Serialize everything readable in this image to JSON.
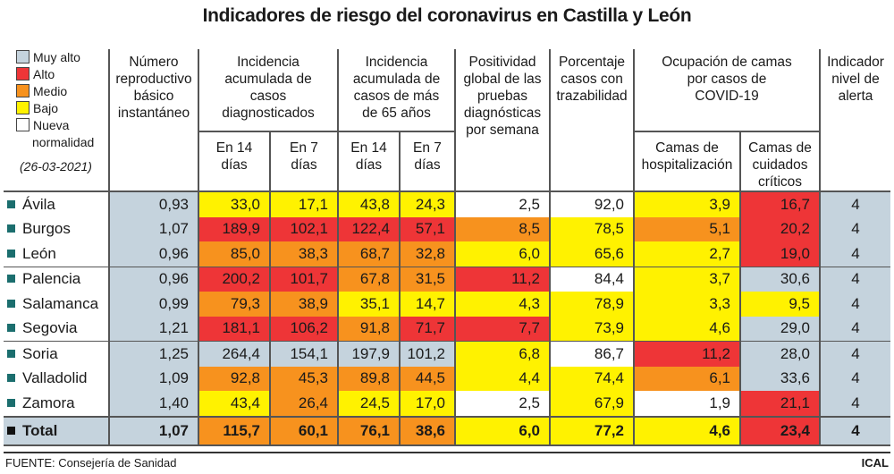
{
  "title": "Indicadores de riesgo del coronavirus en Castilla y León",
  "legend": {
    "items": [
      {
        "label": "Muy alto",
        "color": "#c5d3dd"
      },
      {
        "label": "Alto",
        "color": "#ee3537"
      },
      {
        "label": "Medio",
        "color": "#f7921e"
      },
      {
        "label": "Bajo",
        "color": "#fff200"
      },
      {
        "label": "Nueva",
        "color": "#ffffff"
      }
    ],
    "label_cont": "normalidad",
    "date": "(26-03-2021)"
  },
  "headers": {
    "r": "Número reproductivo básico instantáneo",
    "ia": "Incidencia acumulada de casos diagnosticados",
    "ia65": "Incidencia acumulada de casos de más de 65 años",
    "pos": "Positividad global de las pruebas diagnósticas por semana",
    "traz": "Porcentaje casos con trazabilidad",
    "ocup": "Ocupación de camas por casos de COVID-19",
    "ind": "Indicador nivel de alerta",
    "en14": "En 14 días",
    "en7": "En 7 días",
    "hosp": "Camas de hospitalización",
    "uci": "Camas de cuidados críticos"
  },
  "colors": {
    "G": "#c5d3dd",
    "R": "#ee3537",
    "O": "#f7921e",
    "Y": "#fff200",
    "W": "#ffffff",
    "bullet": "#1b6e6e"
  },
  "rows": [
    {
      "name": "Ávila",
      "values": [
        "0,93",
        "33,0",
        "17,1",
        "43,8",
        "24,3",
        "2,5",
        "92,0",
        "3,9",
        "16,7",
        "4"
      ],
      "levels": "GYYYYWWYRG"
    },
    {
      "name": "Burgos",
      "values": [
        "1,07",
        "189,9",
        "102,1",
        "122,4",
        "57,1",
        "8,5",
        "78,5",
        "5,1",
        "20,2",
        "4"
      ],
      "levels": "GRRRROYORG"
    },
    {
      "name": "León",
      "values": [
        "0,96",
        "85,0",
        "38,3",
        "68,7",
        "32,8",
        "6,0",
        "65,6",
        "2,7",
        "19,0",
        "4"
      ],
      "levels": "GOOOOYYYRG"
    },
    {
      "name": "Palencia",
      "values": [
        "0,96",
        "200,2",
        "101,7",
        "67,8",
        "31,5",
        "11,2",
        "84,4",
        "3,7",
        "30,6",
        "4"
      ],
      "levels": "GRROORWYGG"
    },
    {
      "name": "Salamanca",
      "values": [
        "0,99",
        "79,3",
        "38,9",
        "35,1",
        "14,7",
        "4,3",
        "78,9",
        "3,3",
        "9,5",
        "4"
      ],
      "levels": "GOOYYYYYYG"
    },
    {
      "name": "Segovia",
      "values": [
        "1,21",
        "181,1",
        "106,2",
        "91,8",
        "71,7",
        "7,7",
        "73,9",
        "4,6",
        "29,0",
        "4"
      ],
      "levels": "GRRORBYYGG"
    },
    {
      "name": "Soria",
      "values": [
        "1,25",
        "264,4",
        "154,1",
        "197,9",
        "101,2",
        "6,8",
        "86,7",
        "11,2",
        "28,0",
        "4"
      ],
      "levels": "GGGGGYWRGG"
    },
    {
      "name": "Valladolid",
      "values": [
        "1,09",
        "92,8",
        "45,3",
        "89,8",
        "44,5",
        "4,4",
        "74,4",
        "6,1",
        "33,6",
        "4"
      ],
      "levels": "GOOOOYYOGG"
    },
    {
      "name": "Zamora",
      "values": [
        "1,40",
        "43,4",
        "26,4",
        "24,5",
        "17,0",
        "2,5",
        "67,9",
        "1,9",
        "21,1",
        "4"
      ],
      "levels": "GYOYYWYWRG"
    }
  ],
  "total": {
    "name": "Total",
    "values": [
      "1,07",
      "115,7",
      "60,1",
      "76,1",
      "38,6",
      "6,0",
      "77,2",
      "4,6",
      "23,4",
      "4"
    ],
    "levels": "GOOOOYYYRG"
  },
  "source": "FUENTE: Consejería de Sanidad",
  "credit": "ICAL"
}
